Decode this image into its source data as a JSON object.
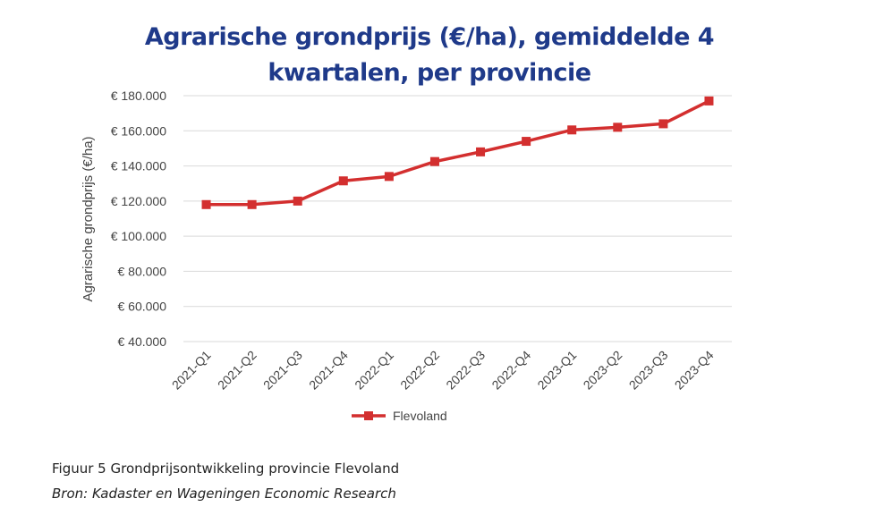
{
  "chart_data": {
    "type": "line",
    "title": "Agrarische grondprijs (€/ha), gemiddelde 4 kwartalen, per provincie",
    "ylabel": "Agrarische grondprijs (€/ha)",
    "xlabel": "",
    "ylim": [
      40000,
      180000
    ],
    "y_ticks": [
      40000,
      60000,
      80000,
      100000,
      120000,
      140000,
      160000,
      180000
    ],
    "y_tick_labels": [
      "€ 40.000",
      "€ 60.000",
      "€ 80.000",
      "€ 100.000",
      "€ 120.000",
      "€ 140.000",
      "€ 160.000",
      "€ 180.000"
    ],
    "categories": [
      "2021-Q1",
      "2021-Q2",
      "2021-Q3",
      "2021-Q4",
      "2022-Q1",
      "2022-Q2",
      "2022-Q3",
      "2022-Q4",
      "2023-Q1",
      "2023-Q2",
      "2023-Q3",
      "2023-Q4"
    ],
    "series": [
      {
        "name": "Flevoland",
        "color": "#d32f2f",
        "marker": "square",
        "values": [
          118000,
          118000,
          120000,
          131500,
          134000,
          142500,
          148000,
          154000,
          160500,
          162000,
          164000,
          177000
        ]
      }
    ],
    "grid": true,
    "legend_position": "bottom"
  },
  "caption": "Figuur 5 Grondprijsontwikkeling provincie Flevoland",
  "source": "Bron: Kadaster en Wageningen Economic Research"
}
